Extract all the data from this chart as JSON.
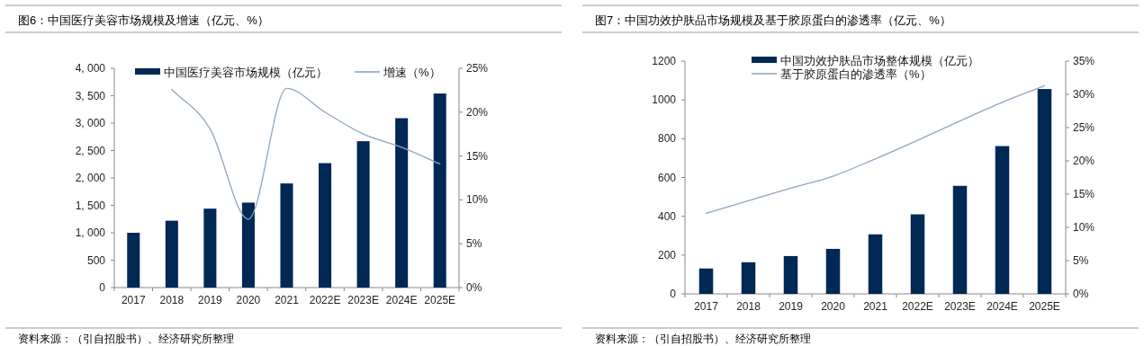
{
  "chart_data": [
    {
      "type": "bar",
      "title": "图6：中国医疗美容市场规模及增速（亿元、%）",
      "categories": [
        "2017",
        "2018",
        "2019",
        "2020",
        "2021",
        "2022E",
        "2023E",
        "2024E",
        "2025E"
      ],
      "series": [
        {
          "name": "中国医疗美容市场规模（亿元）",
          "color": "#002855",
          "values": [
            1000,
            1220,
            1440,
            1550,
            1900,
            2270,
            2670,
            3090,
            3540
          ]
        },
        {
          "name": "增速（%）",
          "type": "line",
          "axis": "y2",
          "color": "#8fa6c1",
          "values": [
            null,
            22.6,
            18.1,
            7.8,
            22.7,
            20.0,
            17.5,
            16.0,
            14.1
          ]
        }
      ],
      "ylim": [
        0,
        4000
      ],
      "yticks": [
        {
          "value": 0,
          "label": "0"
        },
        {
          "value": 500,
          "label": "500"
        },
        {
          "value": 1000,
          "label": "1, 000"
        },
        {
          "value": 1500,
          "label": "1, 500"
        },
        {
          "value": 2000,
          "label": "2, 000"
        },
        {
          "value": 2500,
          "label": "2, 500"
        },
        {
          "value": 3000,
          "label": "3, 000"
        },
        {
          "value": 3500,
          "label": "3, 500"
        },
        {
          "value": 4000,
          "label": "4, 000"
        }
      ],
      "y2lim": [
        0,
        25
      ],
      "y2ticks": [
        {
          "value": 0,
          "label": "0%"
        },
        {
          "value": 5,
          "label": "5%"
        },
        {
          "value": 10,
          "label": "10%"
        },
        {
          "value": 15,
          "label": "15%"
        },
        {
          "value": 20,
          "label": "20%"
        },
        {
          "value": 25,
          "label": "25%"
        }
      ],
      "legend": "top",
      "annotations": [
        "资料来源：（引自招股书）、经济研究所整理"
      ]
    },
    {
      "type": "bar",
      "title": "图7：中国功效护肤品市场规模及基于胶原蛋白的渗透率（亿元、%）",
      "categories": [
        "2017",
        "2018",
        "2019",
        "2020",
        "2021",
        "2022E",
        "2023E",
        "2024E",
        "2025E"
      ],
      "series": [
        {
          "name": "中国功效护肤品市场整体规模（亿元）",
          "color": "#002855",
          "values": [
            131,
            163,
            195,
            232,
            307,
            410,
            557,
            762,
            1056
          ]
        },
        {
          "name": "基于胶原蛋白的渗透率（%）",
          "type": "line",
          "axis": "y2",
          "color": "#8fa6c1",
          "values": [
            12.1,
            14.0,
            15.9,
            17.7,
            20.3,
            23.1,
            26.0,
            28.8,
            31.3
          ]
        }
      ],
      "ylim": [
        0,
        1200
      ],
      "yticks": [
        0,
        200,
        400,
        600,
        800,
        1000,
        1200
      ],
      "y2lim": [
        0,
        35
      ],
      "y2ticks": [
        {
          "value": 0,
          "label": "0%"
        },
        {
          "value": 5,
          "label": "5%"
        },
        {
          "value": 10,
          "label": "10%"
        },
        {
          "value": 15,
          "label": "15%"
        },
        {
          "value": 20,
          "label": "20%"
        },
        {
          "value": 25,
          "label": "25%"
        },
        {
          "value": 30,
          "label": "30%"
        },
        {
          "value": 35,
          "label": "35%"
        }
      ],
      "legend": "top left",
      "annotations": [
        "资料来源：（引自招股书）、经济研究所整理"
      ]
    }
  ]
}
